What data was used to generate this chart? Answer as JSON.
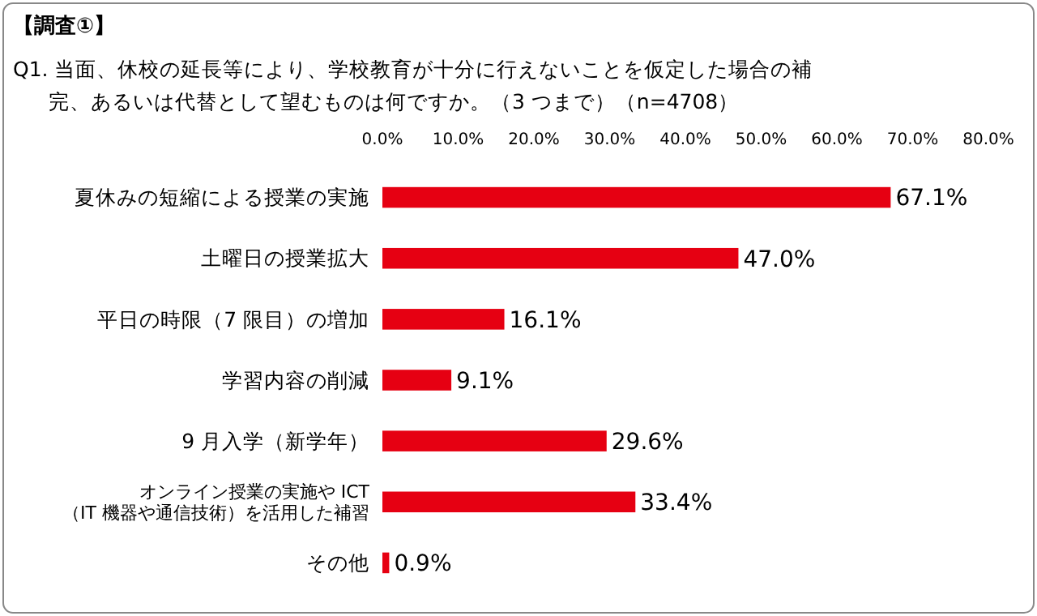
{
  "chart_data": {
    "type": "bar",
    "orientation": "horizontal",
    "title": "【調査①】",
    "subtitle": "Q1. 当面、休校の延長等により、学校教育が十分に行えないことを仮定した場合の補完、あるいは代替として望むものは何ですか。（3 つまで）（n=4708）",
    "categories": [
      "夏休みの短縮による授業の実施",
      "土曜日の授業拡大",
      "平日の時限（7 限目）の増加",
      "学習内容の削減",
      "9 月入学（新学年）",
      "オンライン授業の実施や ICT\n（IT 機器や通信技術）を活用した補習",
      "その他"
    ],
    "values": [
      67.1,
      47.0,
      16.1,
      9.1,
      29.6,
      33.4,
      0.9
    ],
    "value_labels": [
      "67.1%",
      "47.0%",
      "16.1%",
      "9.1%",
      "29.6%",
      "33.4%",
      "0.9%"
    ],
    "color": "#e60012",
    "xlim": [
      0,
      80
    ],
    "xticks": [
      {
        "value": 0,
        "label": "0.0%"
      },
      {
        "value": 10,
        "label": "10.0%"
      },
      {
        "value": 20,
        "label": "20.0%"
      },
      {
        "value": 30,
        "label": "30.0%"
      },
      {
        "value": 40,
        "label": "40.0%"
      },
      {
        "value": 50,
        "label": "50.0%"
      },
      {
        "value": 60,
        "label": "60.0%"
      },
      {
        "value": 70,
        "label": "70.0%"
      },
      {
        "value": 80,
        "label": "80.0%"
      }
    ],
    "grid": false
  }
}
